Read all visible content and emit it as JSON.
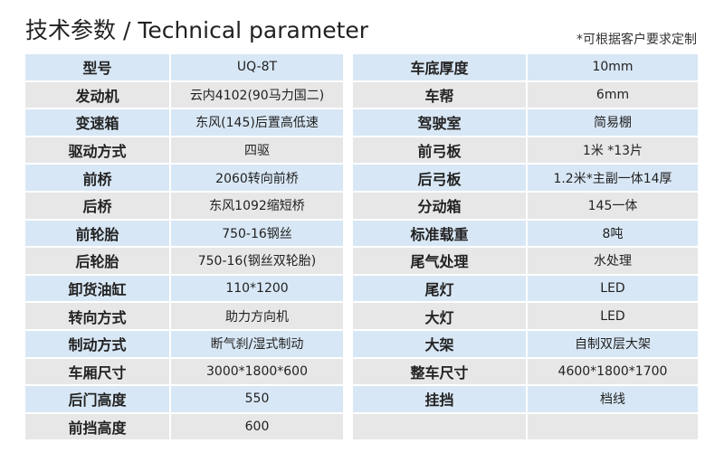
{
  "title": "技术参数 / Technical parameter",
  "note": "*可根据客户要求定制",
  "left": [
    [
      "型号",
      "UQ-8T"
    ],
    [
      "发动机",
      "云内4102(90马力国二)"
    ],
    [
      "变速箱",
      "东风(145)后置高低速"
    ],
    [
      "驱动方式",
      "四驱"
    ],
    [
      "前桥",
      "2060转向前桥"
    ],
    [
      "后桥",
      "东风1092缩短桥"
    ],
    [
      "前轮胎",
      "750-16钢丝"
    ],
    [
      "后轮胎",
      "750-16(钢丝双轮胎)"
    ],
    [
      "卸货油缸",
      "110*1200"
    ],
    [
      "转向方式",
      "助力方向机"
    ],
    [
      "制动方式",
      "断气刹/湿式制动"
    ],
    [
      "车厢尺寸",
      "3000*1800*600"
    ],
    [
      "后门高度",
      "550"
    ],
    [
      "前挡高度",
      "600"
    ]
  ],
  "right": [
    [
      "车底厚度",
      "10mm"
    ],
    [
      "车帮",
      "6mm"
    ],
    [
      "驾驶室",
      "简易棚"
    ],
    [
      "前弓板",
      "1米 *13片"
    ],
    [
      "后弓板",
      "1.2米*主副一体14厚"
    ],
    [
      "分动箱",
      "145一体"
    ],
    [
      "标准载重",
      "8吨"
    ],
    [
      "尾气处理",
      "水处理"
    ],
    [
      "尾灯",
      "LED"
    ],
    [
      "大灯",
      "LED"
    ],
    [
      "大架",
      "自制双层大架"
    ],
    [
      "整车尺寸",
      "4600*1800*1700"
    ],
    [
      "挂挡",
      "档线"
    ],
    [
      "",
      ""
    ]
  ]
}
